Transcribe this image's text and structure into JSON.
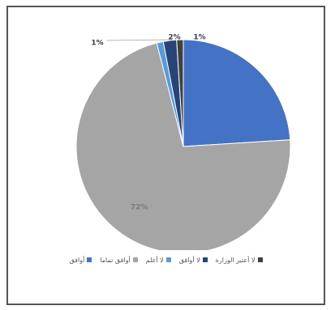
{
  "chart_data": {
    "type": "pie",
    "title": "",
    "categories": [
      "أوافق",
      "أوافق تماما",
      "لا أعلم",
      "لا أوافق",
      "لا أعتبر الوزارة"
    ],
    "values": [
      24,
      72,
      1,
      2,
      1
    ],
    "labels": [
      "",
      "72%",
      "1%",
      "2%",
      "1%"
    ],
    "colors": [
      "#4472C4",
      "#A5A5A5",
      "#5B9BD5",
      "#264478",
      "#404040"
    ],
    "legend_position": "bottom"
  }
}
